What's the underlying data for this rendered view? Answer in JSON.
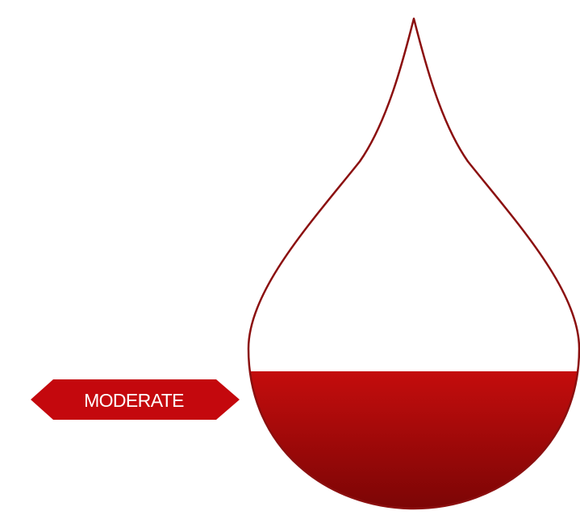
{
  "level_label": "MODERATE",
  "fill_level": 0.28,
  "colors": {
    "outline": "#8b0f0f",
    "fill_top": "#c40d0d",
    "fill_bottom": "#7a0505",
    "badge": "#c4080d",
    "badge_text": "#ffffff"
  }
}
